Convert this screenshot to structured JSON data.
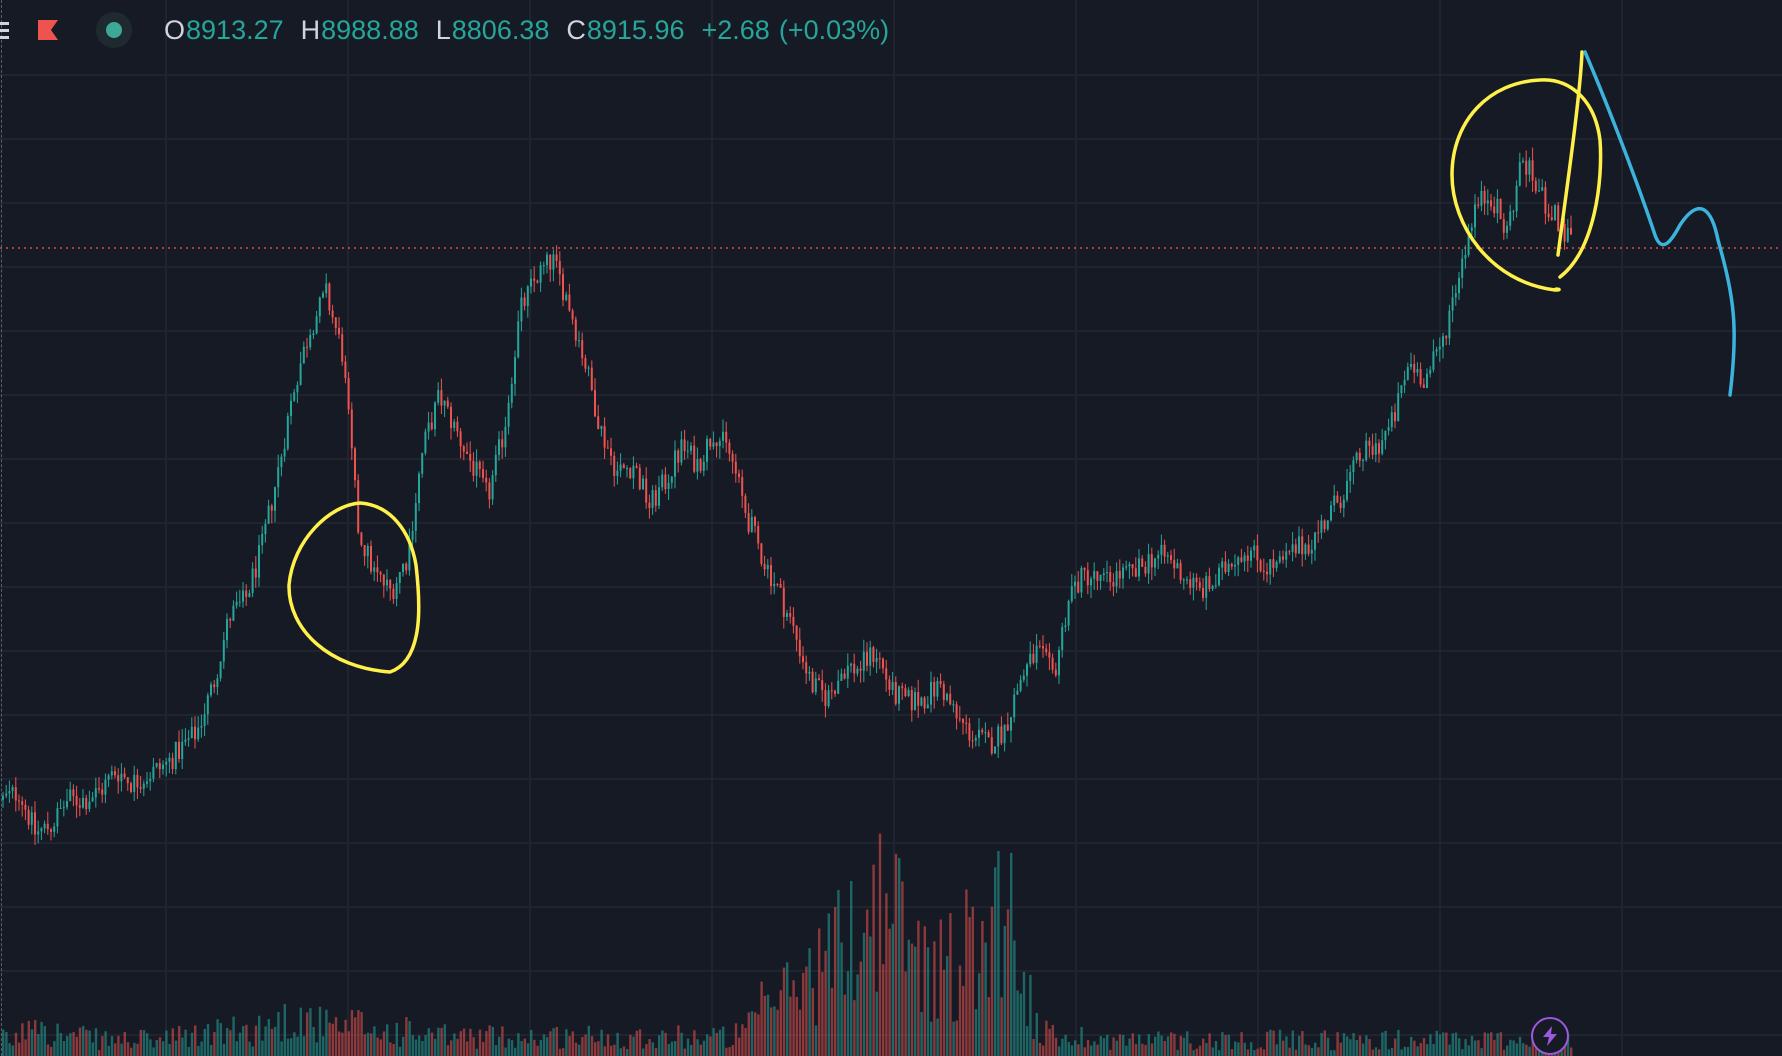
{
  "toolbar": {
    "menu_icon": "hamburger-menu-icon",
    "flag_icon": "flag-icon",
    "status_icon": "live-status-dot-icon"
  },
  "legend": {
    "open_label": "O",
    "open": "8913.27",
    "high_label": "H",
    "high": "8988.88",
    "low_label": "L",
    "low": "8806.38",
    "close_label": "C",
    "close": "8915.96",
    "change": "+2.68",
    "change_percent": "(+0.03%)"
  },
  "colors": {
    "background": "#161a25",
    "grid": "#232733",
    "up": "#26a69a",
    "down": "#ef5350",
    "current_price_line": "#ef5350",
    "annotation_circle": "#fff04a",
    "annotation_projection": "#3bb3dd",
    "bolt_accent": "#9b59e0"
  },
  "bolt_button": {
    "icon": "lightning-bolt-icon"
  },
  "chart_data": {
    "type": "candlestick",
    "symbol_last": {
      "open": 8913.27,
      "high": 8988.88,
      "low": 8806.38,
      "close": 8915.96
    },
    "x": [
      0,
      1,
      2,
      3,
      4,
      5,
      6,
      7,
      8,
      9,
      10,
      11,
      12,
      13,
      14,
      15,
      16,
      17,
      18,
      19,
      20,
      21,
      22,
      23,
      24,
      25,
      26,
      27,
      28,
      29,
      30,
      31,
      32,
      33,
      34,
      35,
      36,
      37,
      38,
      39,
      40,
      41,
      42,
      43,
      44,
      45,
      46,
      47,
      48,
      49,
      50,
      51,
      52,
      53,
      54,
      55,
      56,
      57,
      58,
      59,
      60,
      61,
      62,
      63,
      64,
      65,
      66,
      67,
      68,
      69,
      70,
      71,
      72,
      73,
      74,
      75,
      76,
      77,
      78,
      79,
      80,
      81,
      82,
      83,
      84,
      85,
      86,
      87,
      88,
      89,
      90,
      91,
      92,
      93,
      94,
      95,
      96,
      97
    ],
    "close_path": [
      0.165,
      0.175,
      0.125,
      0.135,
      0.165,
      0.165,
      0.175,
      0.2,
      0.185,
      0.195,
      0.205,
      0.225,
      0.245,
      0.3,
      0.38,
      0.4,
      0.46,
      0.55,
      0.65,
      0.72,
      0.76,
      0.69,
      0.48,
      0.43,
      0.41,
      0.45,
      0.58,
      0.64,
      0.6,
      0.56,
      0.52,
      0.6,
      0.74,
      0.78,
      0.8,
      0.75,
      0.68,
      0.6,
      0.55,
      0.56,
      0.51,
      0.54,
      0.58,
      0.56,
      0.6,
      0.57,
      0.5,
      0.45,
      0.41,
      0.36,
      0.3,
      0.285,
      0.32,
      0.32,
      0.34,
      0.29,
      0.28,
      0.285,
      0.3,
      0.26,
      0.24,
      0.23,
      0.25,
      0.31,
      0.34,
      0.31,
      0.41,
      0.43,
      0.42,
      0.43,
      0.43,
      0.45,
      0.45,
      0.43,
      0.41,
      0.42,
      0.45,
      0.46,
      0.44,
      0.44,
      0.46,
      0.47,
      0.5,
      0.53,
      0.57,
      0.58,
      0.61,
      0.68,
      0.66,
      0.7,
      0.78,
      0.86,
      0.88,
      0.83,
      0.92,
      0.88,
      0.85,
      0.82
    ],
    "volume_profile": [
      0.1,
      0.1,
      0.3,
      0.15,
      0.12,
      0.12,
      0.1,
      0.1,
      0.1,
      0.1,
      0.1,
      0.12,
      0.12,
      0.15,
      0.15,
      0.15,
      0.18,
      0.2,
      0.25,
      0.22,
      0.18,
      0.15,
      0.2,
      0.15,
      0.15,
      0.15,
      0.12,
      0.12,
      0.12,
      0.12,
      0.12,
      0.12,
      0.12,
      0.12,
      0.12,
      0.12,
      0.12,
      0.12,
      0.12,
      0.12,
      0.12,
      0.12,
      0.12,
      0.12,
      0.12,
      0.12,
      0.15,
      0.3,
      0.35,
      0.45,
      0.5,
      0.6,
      0.7,
      0.8,
      0.95,
      0.9,
      0.7,
      0.6,
      0.55,
      0.6,
      0.7,
      0.85,
      1.0,
      0.6,
      0.15,
      0.12,
      0.12,
      0.12,
      0.1,
      0.1,
      0.1,
      0.1,
      0.1,
      0.1,
      0.1,
      0.1,
      0.1,
      0.1,
      0.1,
      0.1,
      0.1,
      0.1,
      0.1,
      0.1,
      0.1,
      0.1,
      0.1,
      0.1,
      0.1,
      0.1,
      0.1,
      0.1,
      0.1,
      0.1,
      0.1,
      0.1,
      0.1,
      0.1
    ],
    "current_price_level": 8915.96,
    "grid": true,
    "annotations": [
      "circle-around-first-peak",
      "circle-around-recent-peak",
      "hand-drawn-downward-projection"
    ]
  }
}
